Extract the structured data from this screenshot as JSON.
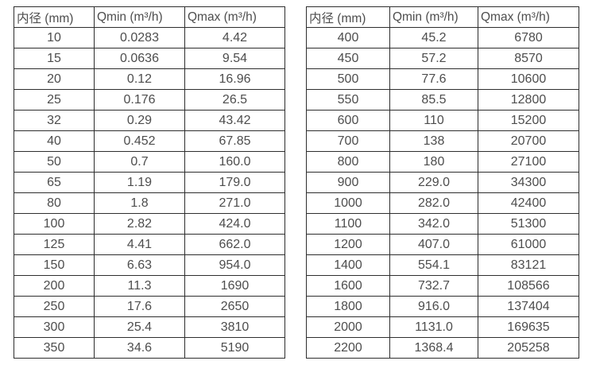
{
  "colors": {
    "border": "#2e2e2e",
    "text": "#4d4d4d",
    "background": "#ffffff"
  },
  "tables": [
    {
      "name": "flow-range-table-small-diameters",
      "headers": [
        "内径 (mm)",
        "Qmin (m³/h)",
        "Qmax (m³/h)"
      ],
      "rows": [
        [
          "10",
          "0.0283",
          "4.42"
        ],
        [
          "15",
          "0.0636",
          "9.54"
        ],
        [
          "20",
          "0.12",
          "16.96"
        ],
        [
          "25",
          "0.176",
          "26.5"
        ],
        [
          "32",
          "0.29",
          "43.42"
        ],
        [
          "40",
          "0.452",
          "67.85"
        ],
        [
          "50",
          "0.7",
          "160.0"
        ],
        [
          "65",
          "1.19",
          "179.0"
        ],
        [
          "80",
          "1.8",
          "271.0"
        ],
        [
          "100",
          "2.82",
          "424.0"
        ],
        [
          "125",
          "4.41",
          "662.0"
        ],
        [
          "150",
          "6.63",
          "954.0"
        ],
        [
          "200",
          "11.3",
          "1690"
        ],
        [
          "250",
          "17.6",
          "2650"
        ],
        [
          "300",
          "25.4",
          "3810"
        ],
        [
          "350",
          "34.6",
          "5190"
        ]
      ]
    },
    {
      "name": "flow-range-table-large-diameters",
      "headers": [
        "内径 (mm)",
        "Qmin (m³/h)",
        "Qmax (m³/h)"
      ],
      "rows": [
        [
          "400",
          "45.2",
          "6780"
        ],
        [
          "450",
          "57.2",
          "8570"
        ],
        [
          "500",
          "77.6",
          "10600"
        ],
        [
          "550",
          "85.5",
          "12800"
        ],
        [
          "600",
          "110",
          "15200"
        ],
        [
          "700",
          "138",
          "20700"
        ],
        [
          "800",
          "180",
          "27100"
        ],
        [
          "900",
          "229.0",
          "34300"
        ],
        [
          "1000",
          "282.0",
          "42400"
        ],
        [
          "1100",
          "342.0",
          "51300"
        ],
        [
          "1200",
          "407.0",
          "61000"
        ],
        [
          "1400",
          "554.1",
          "83121"
        ],
        [
          "1600",
          "732.7",
          "108566"
        ],
        [
          "1800",
          "916.0",
          "137404"
        ],
        [
          "2000",
          "1131.0",
          "169635"
        ],
        [
          "2200",
          "1368.4",
          "205258"
        ]
      ]
    }
  ]
}
